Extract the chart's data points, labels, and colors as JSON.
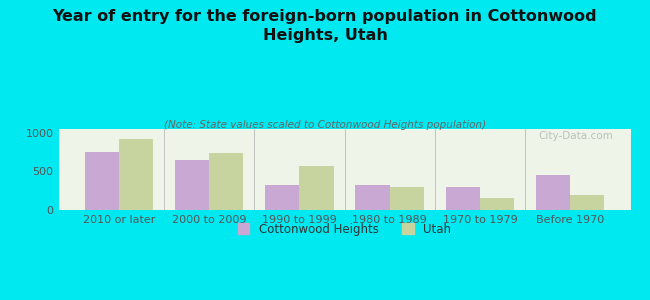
{
  "title": "Year of entry for the foreign-born population in Cottonwood\nHeights, Utah",
  "subtitle": "(Note: State values scaled to Cottonwood Heights population)",
  "categories": [
    "2010 or later",
    "2000 to 2009",
    "1990 to 1999",
    "1980 to 1989",
    "1970 to 1979",
    "Before 1970"
  ],
  "cottonwood_values": [
    750,
    645,
    330,
    320,
    300,
    450
  ],
  "utah_values": [
    920,
    740,
    570,
    300,
    155,
    190
  ],
  "cottonwood_color": "#c9a8d4",
  "utah_color": "#c8d4a0",
  "background_outer": "#00e8f0",
  "background_inner": "#eef5e8",
  "ylim": [
    0,
    1050
  ],
  "yticks": [
    0,
    500,
    1000
  ],
  "bar_width": 0.38,
  "legend_cottonwood": "Cottonwood Heights",
  "legend_utah": "Utah",
  "watermark": "City-Data.com",
  "title_fontsize": 11.5,
  "subtitle_fontsize": 7.5,
  "tick_fontsize": 8,
  "legend_fontsize": 8.5
}
